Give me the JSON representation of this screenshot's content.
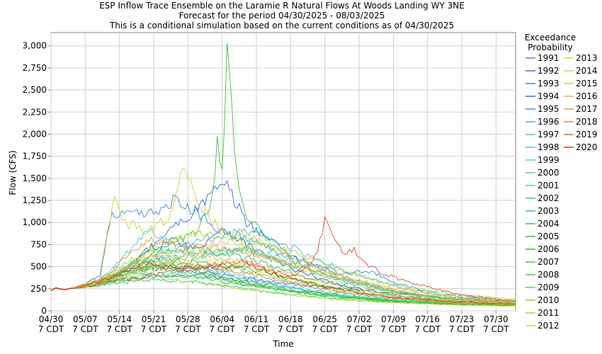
{
  "chart_data": {
    "type": "line",
    "title": [
      "ESP Inflow Trace Ensemble on the Laramie R Natural Flows At Woods Landing WY 3NE",
      "Forecast for the period 04/30/2025 - 08/03/2025",
      "This is a conditional simulation based on the current conditions as of 04/30/2025"
    ],
    "xlabel": "Time",
    "ylabel": "Flow (CFS)",
    "ylim": [
      0,
      3150
    ],
    "yticks": [
      "0",
      "250",
      "500",
      "750",
      "1,000",
      "1,250",
      "1,500",
      "1,750",
      "2,000",
      "2,250",
      "2,500",
      "2,750",
      "3,000"
    ],
    "ytick_values": [
      0,
      250,
      500,
      750,
      1000,
      1250,
      1500,
      1750,
      2000,
      2250,
      2500,
      2750,
      3000
    ],
    "xlim": [
      0,
      95
    ],
    "xticks": [
      {
        "day": 0,
        "date": "04/30",
        "tz": "7 CDT"
      },
      {
        "day": 7,
        "date": "05/07",
        "tz": "7 CDT"
      },
      {
        "day": 14,
        "date": "05/14",
        "tz": "7 CDT"
      },
      {
        "day": 21,
        "date": "05/21",
        "tz": "7 CDT"
      },
      {
        "day": 28,
        "date": "05/28",
        "tz": "7 CDT"
      },
      {
        "day": 35,
        "date": "06/04",
        "tz": "7 CDT"
      },
      {
        "day": 42,
        "date": "06/11",
        "tz": "7 CDT"
      },
      {
        "day": 49,
        "date": "06/18",
        "tz": "7 CDT"
      },
      {
        "day": 56,
        "date": "06/25",
        "tz": "7 CDT"
      },
      {
        "day": 63,
        "date": "07/02",
        "tz": "7 CDT"
      },
      {
        "day": 70,
        "date": "07/09",
        "tz": "7 CDT"
      },
      {
        "day": 77,
        "date": "07/16",
        "tz": "7 CDT"
      },
      {
        "day": 84,
        "date": "07/23",
        "tz": "7 CDT"
      },
      {
        "day": 91,
        "date": "07/30",
        "tz": "7 CDT"
      }
    ],
    "grid": true,
    "legend_position": "right",
    "legend_title": [
      "Exceedance",
      "Probability"
    ],
    "initial": {
      "days": [
        0,
        1,
        2,
        3,
        4,
        5
      ],
      "values": [
        230,
        260,
        245,
        240,
        255,
        260
      ]
    },
    "series": [
      {
        "name": "1991",
        "color": "#6b7bd6",
        "days": [
          5,
          10,
          20,
          30,
          40,
          50,
          60,
          70,
          80,
          95
        ],
        "values": [
          260,
          300,
          380,
          420,
          330,
          250,
          170,
          120,
          95,
          70
        ]
      },
      {
        "name": "1992",
        "color": "#5a66b8",
        "days": [
          5,
          10,
          20,
          30,
          40,
          50,
          60,
          70,
          80,
          95
        ],
        "values": [
          260,
          310,
          480,
          450,
          360,
          300,
          250,
          200,
          150,
          110
        ]
      },
      {
        "name": "1993",
        "color": "#3f7fd0",
        "days": [
          5,
          10,
          15,
          20,
          25,
          30,
          33,
          36,
          40,
          45,
          50,
          60,
          70,
          80,
          95
        ],
        "values": [
          260,
          300,
          450,
          700,
          950,
          1150,
          1350,
          1400,
          1000,
          800,
          600,
          380,
          220,
          140,
          90
        ]
      },
      {
        "name": "1994",
        "color": "#2f6ec0",
        "days": [
          5,
          10,
          15,
          20,
          25,
          30,
          35,
          40,
          50,
          60,
          70,
          80,
          95
        ],
        "values": [
          260,
          320,
          450,
          700,
          800,
          700,
          950,
          750,
          450,
          280,
          180,
          120,
          80
        ]
      },
      {
        "name": "1995",
        "color": "#4a96d8",
        "days": [
          5,
          10,
          12,
          15,
          20,
          25,
          30,
          35,
          40,
          45,
          50,
          55,
          60,
          65,
          70,
          80,
          95
        ],
        "values": [
          260,
          400,
          1050,
          1100,
          1080,
          1250,
          1100,
          900,
          820,
          700,
          600,
          500,
          420,
          450,
          320,
          180,
          110
        ]
      },
      {
        "name": "1996",
        "color": "#52a8e0",
        "days": [
          5,
          10,
          20,
          30,
          40,
          50,
          60,
          70,
          80,
          95
        ],
        "values": [
          260,
          320,
          550,
          650,
          700,
          500,
          330,
          220,
          140,
          90
        ]
      },
      {
        "name": "1997",
        "color": "#5bb8e6",
        "days": [
          5,
          10,
          20,
          30,
          40,
          50,
          60,
          70,
          80,
          95
        ],
        "values": [
          260,
          350,
          600,
          800,
          900,
          700,
          450,
          280,
          170,
          110
        ]
      },
      {
        "name": "1998",
        "color": "#4fcae0",
        "days": [
          5,
          10,
          20,
          30,
          40,
          50,
          60,
          70,
          80,
          95
        ],
        "values": [
          260,
          300,
          480,
          500,
          380,
          260,
          180,
          120,
          90,
          65
        ]
      },
      {
        "name": "1999",
        "color": "#48d4d2",
        "days": [
          5,
          10,
          20,
          30,
          40,
          50,
          60,
          70,
          80,
          95
        ],
        "values": [
          260,
          340,
          900,
          600,
          700,
          550,
          350,
          220,
          140,
          90
        ]
      },
      {
        "name": "2000",
        "color": "#44dcc2",
        "days": [
          5,
          10,
          20,
          30,
          40,
          50,
          60,
          70,
          80,
          95
        ],
        "values": [
          260,
          310,
          520,
          480,
          360,
          250,
          170,
          120,
          90,
          65
        ]
      },
      {
        "name": "2001",
        "color": "#3cd8a8",
        "days": [
          5,
          10,
          20,
          30,
          40,
          50,
          60,
          70,
          80,
          95
        ],
        "values": [
          260,
          300,
          420,
          400,
          300,
          220,
          160,
          110,
          85,
          60
        ]
      },
      {
        "name": "2002",
        "color": "#30d08a",
        "days": [
          5,
          10,
          20,
          30,
          40,
          50,
          60,
          70,
          80,
          95
        ],
        "values": [
          260,
          290,
          350,
          330,
          250,
          180,
          130,
          95,
          75,
          55
        ]
      },
      {
        "name": "2003",
        "color": "#2ccc6c",
        "days": [
          5,
          10,
          20,
          30,
          40,
          50,
          60,
          70,
          80,
          95
        ],
        "values": [
          260,
          330,
          650,
          700,
          600,
          420,
          270,
          170,
          110,
          75
        ]
      },
      {
        "name": "2004",
        "color": "#26c850",
        "days": [
          5,
          10,
          20,
          30,
          40,
          50,
          60,
          70,
          80,
          95
        ],
        "values": [
          260,
          300,
          400,
          380,
          290,
          210,
          150,
          105,
          80,
          58
        ]
      },
      {
        "name": "2005",
        "color": "#22c43a",
        "days": [
          5,
          10,
          20,
          30,
          40,
          50,
          60,
          70,
          80,
          95
        ],
        "values": [
          260,
          320,
          600,
          550,
          480,
          350,
          230,
          150,
          100,
          70
        ]
      },
      {
        "name": "2006",
        "color": "#34c030",
        "days": [
          5,
          10,
          20,
          30,
          40,
          50,
          60,
          70,
          80,
          95
        ],
        "values": [
          260,
          340,
          550,
          450,
          320,
          230,
          160,
          110,
          85,
          60
        ]
      },
      {
        "name": "2007",
        "color": "#4cc428",
        "days": [
          5,
          10,
          20,
          30,
          40,
          50,
          60,
          70,
          80,
          95
        ],
        "values": [
          260,
          330,
          500,
          420,
          300,
          210,
          150,
          105,
          80,
          58
        ]
      },
      {
        "name": "2008",
        "color": "#44d048",
        "days": [
          5,
          10,
          20,
          25,
          30,
          33,
          34,
          35,
          36,
          37,
          38,
          40,
          45,
          50,
          60,
          70,
          80,
          95
        ],
        "values": [
          260,
          330,
          600,
          750,
          900,
          1300,
          1880,
          1600,
          2920,
          2200,
          1500,
          1100,
          750,
          550,
          350,
          220,
          140,
          90
        ]
      },
      {
        "name": "2009",
        "color": "#6cd43a",
        "days": [
          5,
          10,
          20,
          30,
          40,
          50,
          60,
          70,
          80,
          95
        ],
        "values": [
          260,
          310,
          480,
          520,
          450,
          320,
          210,
          140,
          95,
          68
        ]
      },
      {
        "name": "2010",
        "color": "#8cd830",
        "days": [
          5,
          10,
          20,
          30,
          40,
          50,
          60,
          70,
          80,
          95
        ],
        "values": [
          260,
          320,
          500,
          650,
          700,
          500,
          320,
          200,
          130,
          85
        ]
      },
      {
        "name": "2011",
        "color": "#a8dc2c",
        "days": [
          5,
          10,
          20,
          30,
          40,
          50,
          60,
          70,
          80,
          95
        ],
        "values": [
          260,
          360,
          700,
          900,
          800,
          650,
          450,
          300,
          200,
          130
        ]
      },
      {
        "name": "2012",
        "color": "#c0dc30",
        "days": [
          5,
          10,
          20,
          30,
          40,
          50,
          60,
          70,
          80,
          95
        ],
        "values": [
          260,
          300,
          380,
          320,
          240,
          170,
          120,
          90,
          70,
          52
        ]
      },
      {
        "name": "2013",
        "color": "#d0d640",
        "days": [
          5,
          10,
          20,
          30,
          40,
          50,
          60,
          70,
          80,
          95
        ],
        "values": [
          260,
          320,
          450,
          600,
          500,
          350,
          230,
          150,
          100,
          70
        ]
      },
      {
        "name": "2014",
        "color": "#d8d050",
        "days": [
          5,
          10,
          13,
          15,
          20,
          25,
          27,
          30,
          35,
          40,
          50,
          60,
          70,
          80,
          95
        ],
        "values": [
          260,
          350,
          1300,
          1000,
          900,
          1100,
          1700,
          1200,
          900,
          700,
          500,
          380,
          260,
          170,
          110
        ]
      },
      {
        "name": "2015",
        "color": "#dcc85a",
        "days": [
          5,
          10,
          20,
          30,
          40,
          50,
          60,
          70,
          80,
          95
        ],
        "values": [
          260,
          330,
          600,
          700,
          850,
          600,
          380,
          240,
          150,
          95
        ]
      },
      {
        "name": "2016",
        "color": "#e0b850",
        "days": [
          5,
          10,
          20,
          30,
          40,
          50,
          60,
          70,
          80,
          95
        ],
        "values": [
          260,
          340,
          620,
          650,
          550,
          400,
          270,
          180,
          120,
          80
        ]
      },
      {
        "name": "2017",
        "color": "#e0a048",
        "days": [
          5,
          10,
          20,
          30,
          40,
          50,
          60,
          70,
          80,
          95
        ],
        "values": [
          260,
          350,
          800,
          750,
          650,
          520,
          350,
          230,
          150,
          100
        ]
      },
      {
        "name": "2018",
        "color": "#de8a46",
        "days": [
          5,
          10,
          20,
          30,
          40,
          50,
          60,
          70,
          80,
          95
        ],
        "values": [
          260,
          320,
          550,
          500,
          420,
          300,
          200,
          135,
          95,
          68
        ]
      },
      {
        "name": "2019",
        "color": "#d86040",
        "days": [
          5,
          10,
          20,
          30,
          40,
          45,
          50,
          54,
          56,
          58,
          60,
          62,
          65,
          70,
          75,
          80,
          85,
          95
        ],
        "values": [
          260,
          310,
          400,
          500,
          550,
          450,
          400,
          600,
          1020,
          800,
          650,
          700,
          500,
          380,
          300,
          230,
          170,
          110
        ]
      },
      {
        "name": "2020",
        "color": "#d04020",
        "days": [
          5,
          10,
          20,
          30,
          40,
          50,
          60,
          70,
          80,
          95
        ],
        "values": [
          260,
          330,
          520,
          480,
          520,
          350,
          230,
          150,
          110,
          75
        ]
      }
    ]
  }
}
